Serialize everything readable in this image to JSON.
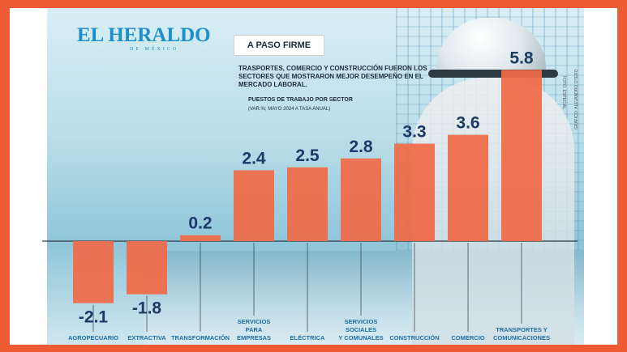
{
  "brand": {
    "name": "EL HERALDO",
    "sub": "DE MÉXICO"
  },
  "heading": "A PASO FIRME",
  "subtitle": "TRASPORTES, COMERCIO Y CONSTRUCCIÓN FUERON LOS SECTORES QUE MOSTRARON MEJOR DESEMPEÑO EN EL MERCADO LABORAL.",
  "label": "PUESTOS DE TRABAJO POR SECTOR",
  "unit": "(VAR.%; MAYO 2024 A TASA ANUAL)",
  "credits": {
    "photo": "FOTO: ESPECIAL",
    "graphic": "GRÁFICO: ALEJANDRO OTERO"
  },
  "colors": {
    "bar": "#f06a48",
    "value_text": "#1d3a66",
    "label_text": "#1f6fa8",
    "background": "#ee5a33"
  },
  "chart_data": {
    "type": "bar",
    "categories": [
      "AGROPECUARIO",
      "EXTRACTIVA",
      "TRANSFORMACIÓN",
      "SERVICIOS PARA EMPRESAS",
      "ELÉCTRICA",
      "SERVICIOS SOCIALES Y COMUNALES",
      "CONSTRUCCIÓN",
      "COMERCIO",
      "TRANSPORTES Y COMUNICACIONES"
    ],
    "category_lines": [
      [
        "AGROPECUARIO"
      ],
      [
        "EXTRACTIVA"
      ],
      [
        "TRANSFORMACIÓN"
      ],
      [
        "SERVICIOS",
        "PARA",
        "EMPRESAS"
      ],
      [
        "ELÉCTRICA"
      ],
      [
        "SERVICIOS",
        "SOCIALES",
        "Y COMUNALES"
      ],
      [
        "CONSTRUCCIÓN"
      ],
      [
        "COMERCIO"
      ],
      [
        "TRANSPORTES Y",
        "COMUNICACIONES"
      ]
    ],
    "values": [
      -2.1,
      -1.8,
      0.2,
      2.4,
      2.5,
      2.8,
      3.3,
      3.6,
      5.8
    ],
    "value_labels": [
      "-2.1",
      "-1.8",
      "0.2",
      "2.4",
      "2.5",
      "2.8",
      "3.3",
      "3.6",
      "5.8"
    ],
    "ylim": [
      -2.1,
      5.8
    ],
    "grid": false,
    "legend": "none"
  }
}
